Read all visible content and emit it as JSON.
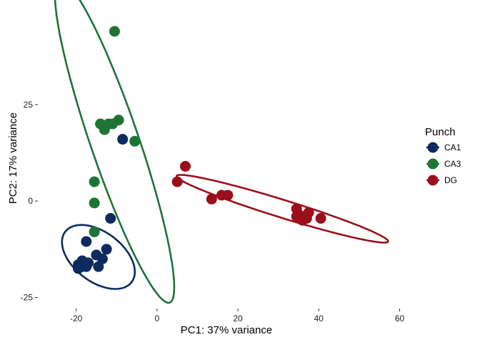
{
  "chart_data": {
    "type": "scatter",
    "title": "",
    "xlabel": "PC1: 37% variance",
    "ylabel": "PC2: 17% variance",
    "xlim": [
      -27,
      61.5
    ],
    "ylim": [
      -27.5,
      48.8
    ],
    "x_ticks": [
      -20,
      0,
      20,
      40,
      60
    ],
    "x_tick_labels": [
      "-20",
      "0",
      "20",
      "40",
      "60"
    ],
    "y_ticks": [
      -25,
      0,
      25
    ],
    "y_tick_labels": [
      "-25",
      "0",
      "25"
    ],
    "grid": false,
    "legend": {
      "title": "Punch",
      "position": "right"
    },
    "series": [
      {
        "name": "CA1",
        "color": "#0e2a5e",
        "points": [
          [
            -8.5,
            16.0
          ],
          [
            -11.5,
            -4.5
          ],
          [
            -17.5,
            -10.5
          ],
          [
            -12.5,
            -12.5
          ],
          [
            -15.0,
            -14.0
          ],
          [
            -13.5,
            -15.0
          ],
          [
            -18.5,
            -15.5
          ],
          [
            -17.0,
            -16.0
          ],
          [
            -19.5,
            -16.5
          ],
          [
            -17.5,
            -17.0
          ],
          [
            -14.5,
            -17.0
          ],
          [
            -19.5,
            -17.5
          ],
          [
            -18.5,
            -17.0
          ]
        ],
        "ellipse": {
          "cx": -14.5,
          "cy": -14.5,
          "rx": 10.5,
          "ry": 6.3,
          "angle_deg": -40
        }
      },
      {
        "name": "CA3",
        "color": "#1e7434",
        "points": [
          [
            -10.5,
            44.0
          ],
          [
            -14.0,
            20.0
          ],
          [
            -12.0,
            20.0
          ],
          [
            -11.0,
            20.0
          ],
          [
            -9.5,
            21.0
          ],
          [
            -13.0,
            18.5
          ],
          [
            -5.5,
            15.5
          ],
          [
            -15.5,
            5.0
          ],
          [
            -15.5,
            -0.5
          ],
          [
            -15.5,
            -8.0
          ]
        ],
        "ellipse": {
          "cx": -10.5,
          "cy": 15.5,
          "rx": 44.0,
          "ry": 6.0,
          "angle_deg": -72
        }
      },
      {
        "name": "DG",
        "color": "#9b0f1a",
        "points": [
          [
            7.0,
            9.0
          ],
          [
            5.0,
            5.0
          ],
          [
            16.0,
            1.5
          ],
          [
            17.5,
            1.5
          ],
          [
            13.5,
            0.5
          ],
          [
            34.5,
            -2.0
          ],
          [
            35.0,
            -3.5
          ],
          [
            37.5,
            -3.0
          ],
          [
            36.5,
            -4.0
          ],
          [
            36.0,
            -5.0
          ],
          [
            40.5,
            -4.5
          ],
          [
            34.5,
            -4.0
          ],
          [
            37.0,
            -4.5
          ]
        ],
        "ellipse": {
          "cx": 31.0,
          "cy": -2.0,
          "rx": 27.5,
          "ry": 2.3,
          "angle_deg": -18
        }
      }
    ]
  }
}
